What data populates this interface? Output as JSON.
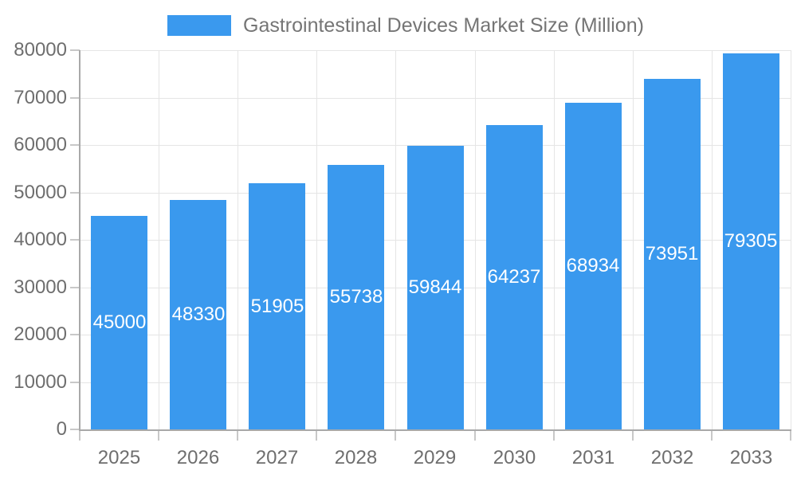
{
  "chart_data": {
    "type": "bar",
    "title": "Gastrointestinal Devices Market Size (Million)",
    "legend": {
      "label": "Gastrointestinal Devices Market Size (Million)",
      "position": "top",
      "swatch_color": "#3a99ee"
    },
    "categories": [
      "2025",
      "2026",
      "2027",
      "2028",
      "2029",
      "2030",
      "2031",
      "2032",
      "2033"
    ],
    "values": [
      45000,
      48330,
      51905,
      55738,
      59844,
      64237,
      68934,
      73951,
      79305
    ],
    "xlabel": "",
    "ylabel": "",
    "ylim": [
      0,
      80000
    ],
    "ytick_step": 10000,
    "ytick_labels": [
      "0",
      "10000",
      "20000",
      "30000",
      "40000",
      "50000",
      "60000",
      "70000",
      "80000"
    ],
    "grid": true,
    "value_labels": {
      "show": true,
      "position": "bar-center",
      "color": "#ffffff"
    },
    "colors": {
      "bar": "#3a99ee",
      "axis_line": "#a9a9a9",
      "tick": "#c8c8c8",
      "gridline": "#e5e5e5",
      "axis_text": "#6e6e6e",
      "legend_text": "#757575",
      "background": "#ffffff"
    }
  }
}
